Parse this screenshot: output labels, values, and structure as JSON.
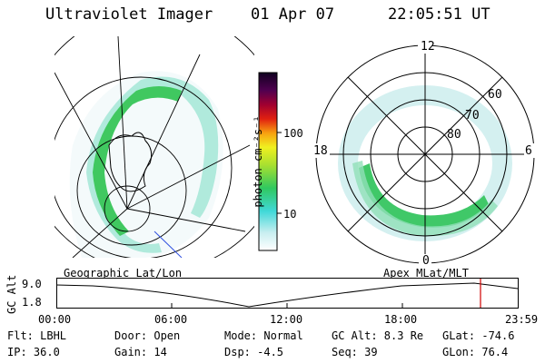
{
  "header": {
    "instrument": "Ultraviolet Imager",
    "date": "01 Apr 07",
    "time": "22:05:51 UT"
  },
  "left_panel": {
    "caption": "Geographic Lat/Lon"
  },
  "right_panel": {
    "caption": "Apex MLat/MLT",
    "mlt_labels": {
      "top": "12",
      "left": "18",
      "right": "6",
      "bottom": "0"
    },
    "lat_labels": [
      "60",
      "70",
      "80"
    ]
  },
  "colorbar": {
    "unit_label": "photon cm⁻²s⁻¹",
    "ticks": [
      {
        "label": "100",
        "value": 100
      },
      {
        "label": "10",
        "value": 10
      }
    ]
  },
  "altitude_plot": {
    "ylabel": "GC Alt",
    "yticks": [
      "9.0",
      "1.8"
    ],
    "xticks": [
      "00:00",
      "06:00",
      "12:00",
      "18:00",
      "23:59"
    ],
    "marker_color": "#d00000"
  },
  "status": {
    "filter": "Flt: LBHL",
    "ip": "IP: 36.0",
    "door": "Door: Open",
    "gain": "Gain: 14",
    "mode": "Mode: Normal",
    "dsp": "Dsp:   -4.5",
    "gc_alt": "GC Alt: 8.3 Re",
    "seq": "Seq: 39",
    "glat": "GLat: -74.6",
    "glon": "GLon:  76.4"
  }
}
